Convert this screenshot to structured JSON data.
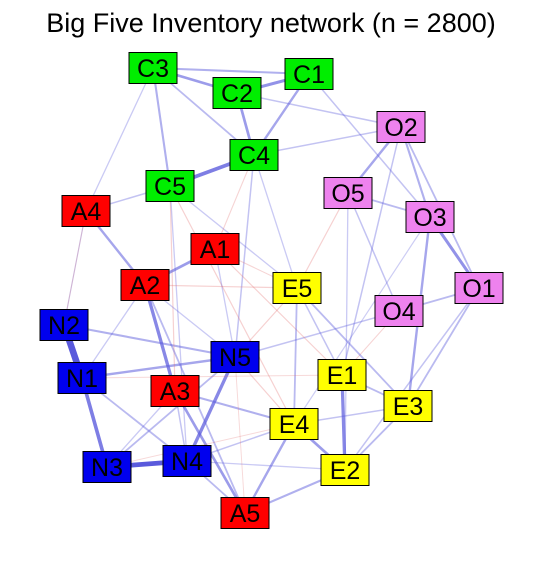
{
  "title": "Big Five Inventory network (n = 2800)",
  "colors": {
    "Agreeableness": "#ff0000",
    "Conscientiousness": "#00ee00",
    "Extraversion": "#ffff00",
    "Neuroticism": "#0000ee",
    "Openness": "#ee82ee",
    "positive_edge": "#5a5adc",
    "negative_edge": "#e06666"
  },
  "nodes": [
    {
      "id": "C3",
      "group": "Conscientiousness"
    },
    {
      "id": "C1",
      "group": "Conscientiousness"
    },
    {
      "id": "C2",
      "group": "Conscientiousness"
    },
    {
      "id": "C4",
      "group": "Conscientiousness"
    },
    {
      "id": "C5",
      "group": "Conscientiousness"
    },
    {
      "id": "O2",
      "group": "Openness"
    },
    {
      "id": "O5",
      "group": "Openness"
    },
    {
      "id": "O3",
      "group": "Openness"
    },
    {
      "id": "O1",
      "group": "Openness"
    },
    {
      "id": "O4",
      "group": "Openness"
    },
    {
      "id": "A4",
      "group": "Agreeableness"
    },
    {
      "id": "A1",
      "group": "Agreeableness"
    },
    {
      "id": "A2",
      "group": "Agreeableness"
    },
    {
      "id": "A3",
      "group": "Agreeableness"
    },
    {
      "id": "A5",
      "group": "Agreeableness"
    },
    {
      "id": "E5",
      "group": "Extraversion"
    },
    {
      "id": "E1",
      "group": "Extraversion"
    },
    {
      "id": "E3",
      "group": "Extraversion"
    },
    {
      "id": "E4",
      "group": "Extraversion"
    },
    {
      "id": "E2",
      "group": "Extraversion"
    },
    {
      "id": "N2",
      "group": "Neuroticism"
    },
    {
      "id": "N1",
      "group": "Neuroticism"
    },
    {
      "id": "N5",
      "group": "Neuroticism"
    },
    {
      "id": "N3",
      "group": "Neuroticism"
    },
    {
      "id": "N4",
      "group": "Neuroticism"
    }
  ],
  "edges": [
    {
      "from": "N1",
      "to": "N2",
      "sign": "positive",
      "weight": 1.0
    },
    {
      "from": "N3",
      "to": "N4",
      "sign": "positive",
      "weight": 0.7
    },
    {
      "from": "N1",
      "to": "N3",
      "sign": "positive",
      "weight": 0.5
    },
    {
      "from": "N4",
      "to": "N5",
      "sign": "positive",
      "weight": 0.45
    },
    {
      "from": "N1",
      "to": "N5",
      "sign": "positive",
      "weight": 0.3
    },
    {
      "from": "N2",
      "to": "N5",
      "sign": "positive",
      "weight": 0.25
    },
    {
      "from": "N1",
      "to": "N4",
      "sign": "positive",
      "weight": 0.2
    },
    {
      "from": "N3",
      "to": "N5",
      "sign": "positive",
      "weight": 0.2
    },
    {
      "from": "C2",
      "to": "C3",
      "sign": "positive",
      "weight": 0.35
    },
    {
      "from": "C1",
      "to": "C2",
      "sign": "positive",
      "weight": 0.4
    },
    {
      "from": "C3",
      "to": "C1",
      "sign": "positive",
      "weight": 0.25
    },
    {
      "from": "C4",
      "to": "C5",
      "sign": "positive",
      "weight": 0.5
    },
    {
      "from": "C1",
      "to": "C4",
      "sign": "positive",
      "weight": 0.3
    },
    {
      "from": "C2",
      "to": "C4",
      "sign": "positive",
      "weight": 0.35
    },
    {
      "from": "C3",
      "to": "C5",
      "sign": "positive",
      "weight": 0.25
    },
    {
      "from": "C3",
      "to": "C4",
      "sign": "positive",
      "weight": 0.2
    },
    {
      "from": "C5",
      "to": "A4",
      "sign": "positive",
      "weight": 0.15
    },
    {
      "from": "C2",
      "to": "O2",
      "sign": "positive",
      "weight": 0.15
    },
    {
      "from": "C1",
      "to": "O3",
      "sign": "positive",
      "weight": 0.15
    },
    {
      "from": "C4",
      "to": "O2",
      "sign": "positive",
      "weight": 0.15
    },
    {
      "from": "C3",
      "to": "A4",
      "sign": "positive",
      "weight": 0.12
    },
    {
      "from": "C4",
      "to": "N5",
      "sign": "positive",
      "weight": 0.15
    },
    {
      "from": "C4",
      "to": "E5",
      "sign": "positive",
      "weight": 0.12
    },
    {
      "from": "C5",
      "to": "E5",
      "sign": "positive",
      "weight": 0.12
    },
    {
      "from": "C5",
      "to": "N4",
      "sign": "positive",
      "weight": 0.12
    },
    {
      "from": "C5",
      "to": "A3",
      "sign": "negative",
      "weight": 0.1
    },
    {
      "from": "C5",
      "to": "E4",
      "sign": "negative",
      "weight": 0.1
    },
    {
      "from": "C4",
      "to": "A1",
      "sign": "negative",
      "weight": 0.08
    },
    {
      "from": "O2",
      "to": "O5",
      "sign": "positive",
      "weight": 0.3
    },
    {
      "from": "O5",
      "to": "O3",
      "sign": "positive",
      "weight": 0.2
    },
    {
      "from": "O3",
      "to": "O1",
      "sign": "positive",
      "weight": 0.4
    },
    {
      "from": "O2",
      "to": "O3",
      "sign": "positive",
      "weight": 0.25
    },
    {
      "from": "O1",
      "to": "O4",
      "sign": "positive",
      "weight": 0.2
    },
    {
      "from": "O2",
      "to": "O1",
      "sign": "positive",
      "weight": 0.2
    },
    {
      "from": "O5",
      "to": "O4",
      "sign": "positive",
      "weight": 0.15
    },
    {
      "from": "O3",
      "to": "E3",
      "sign": "positive",
      "weight": 0.3
    },
    {
      "from": "O1",
      "to": "E3",
      "sign": "positive",
      "weight": 0.2
    },
    {
      "from": "O5",
      "to": "E5",
      "sign": "negative",
      "weight": 0.1
    },
    {
      "from": "O2",
      "to": "E1",
      "sign": "positive",
      "weight": 0.15
    },
    {
      "from": "O4",
      "to": "N5",
      "sign": "positive",
      "weight": 0.15
    },
    {
      "from": "O5",
      "to": "E2",
      "sign": "positive",
      "weight": 0.12
    },
    {
      "from": "O4",
      "to": "E1",
      "sign": "negative",
      "weight": 0.08
    },
    {
      "from": "O1",
      "to": "E2",
      "sign": "positive",
      "weight": 0.15
    },
    {
      "from": "O3",
      "to": "E4",
      "sign": "positive",
      "weight": 0.1
    },
    {
      "from": "A1",
      "to": "A2",
      "sign": "positive",
      "weight": 0.35
    },
    {
      "from": "A2",
      "to": "A3",
      "sign": "positive",
      "weight": 0.45
    },
    {
      "from": "A2",
      "to": "A4",
      "sign": "positive",
      "weight": 0.3
    },
    {
      "from": "A3",
      "to": "A5",
      "sign": "positive",
      "weight": 0.35
    },
    {
      "from": "A2",
      "to": "A5",
      "sign": "positive",
      "weight": 0.2
    },
    {
      "from": "A3",
      "to": "E4",
      "sign": "positive",
      "weight": 0.25
    },
    {
      "from": "A5",
      "to": "E4",
      "sign": "positive",
      "weight": 0.3
    },
    {
      "from": "A5",
      "to": "E2",
      "sign": "positive",
      "weight": 0.25
    },
    {
      "from": "A5",
      "to": "N4",
      "sign": "positive",
      "weight": 0.2
    },
    {
      "from": "A2",
      "to": "N5",
      "sign": "positive",
      "weight": 0.12
    },
    {
      "from": "A1",
      "to": "N5",
      "sign": "positive",
      "weight": 0.12
    },
    {
      "from": "A2",
      "to": "E5",
      "sign": "negative",
      "weight": 0.1
    },
    {
      "from": "A1",
      "to": "E5",
      "sign": "negative",
      "weight": 0.08
    },
    {
      "from": "A2",
      "to": "N1",
      "sign": "positive",
      "weight": 0.12
    },
    {
      "from": "A4",
      "to": "N2",
      "sign": "positive",
      "weight": 0.1
    },
    {
      "from": "A3",
      "to": "N4",
      "sign": "positive",
      "weight": 0.15
    },
    {
      "from": "A3",
      "to": "N3",
      "sign": "positive",
      "weight": 0.12
    },
    {
      "from": "A1",
      "to": "E1",
      "sign": "negative",
      "weight": 0.1
    },
    {
      "from": "E1",
      "to": "E2",
      "sign": "positive",
      "weight": 0.45
    },
    {
      "from": "E3",
      "to": "E2",
      "sign": "positive",
      "weight": 0.2
    },
    {
      "from": "E4",
      "to": "E2",
      "sign": "positive",
      "weight": 0.35
    },
    {
      "from": "E5",
      "to": "E4",
      "sign": "positive",
      "weight": 0.2
    },
    {
      "from": "E5",
      "to": "E3",
      "sign": "positive",
      "weight": 0.2
    },
    {
      "from": "E1",
      "to": "E3",
      "sign": "positive",
      "weight": 0.2
    },
    {
      "from": "E5",
      "to": "E1",
      "sign": "positive",
      "weight": 0.15
    },
    {
      "from": "E4",
      "to": "N4",
      "sign": "positive",
      "weight": 0.15
    },
    {
      "from": "E4",
      "to": "N5",
      "sign": "negative",
      "weight": 0.1
    },
    {
      "from": "E2",
      "to": "N4",
      "sign": "positive",
      "weight": 0.12
    },
    {
      "from": "E5",
      "to": "N5",
      "sign": "negative",
      "weight": 0.1
    },
    {
      "from": "E3",
      "to": "E4",
      "sign": "positive",
      "weight": 0.15
    },
    {
      "from": "N2",
      "to": "A4",
      "sign": "negative",
      "weight": 0.06
    },
    {
      "from": "N1",
      "to": "E1",
      "sign": "negative",
      "weight": 0.06
    },
    {
      "from": "N3",
      "to": "E4",
      "sign": "negative",
      "weight": 0.06
    },
    {
      "from": "A5",
      "to": "N5",
      "sign": "negative",
      "weight": 0.06
    }
  ]
}
